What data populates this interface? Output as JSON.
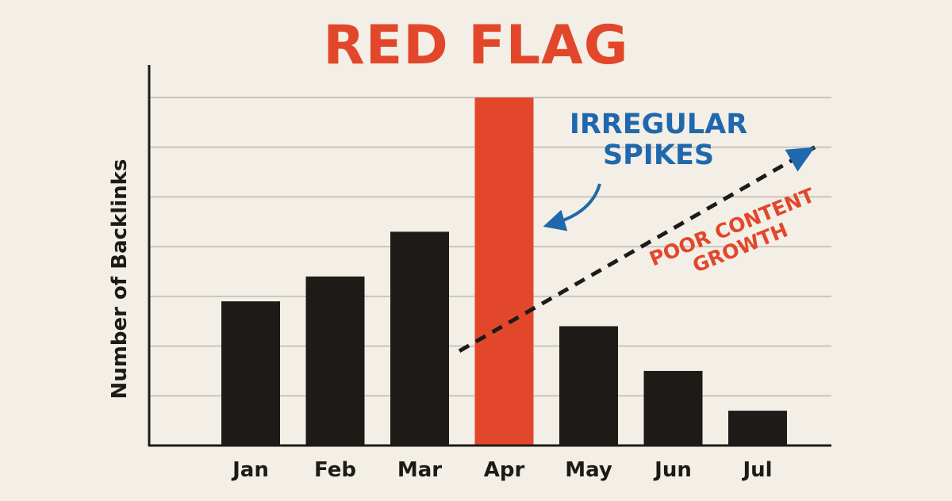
{
  "chart_data": {
    "type": "bar",
    "title": "RED FLAG",
    "ylabel": "Number of Backlinks",
    "xlabel": "",
    "categories": [
      "Jan",
      "Feb",
      "Mar",
      "Apr",
      "May",
      "Jun",
      "Jul"
    ],
    "values": [
      2.9,
      3.4,
      4.3,
      7.0,
      2.4,
      1.5,
      0.7
    ],
    "highlight_index": 3,
    "ylim": [
      0,
      7
    ],
    "grid": true,
    "colors": {
      "bar": "#1d1b18",
      "highlight": "#e2472b",
      "title": "#e2472b",
      "callout_blue": "#1f68ad",
      "callout_red": "#e2472b",
      "grid": "#c9c6bf",
      "axis": "#1d1b18",
      "background": "#f3efe6"
    },
    "annotations": {
      "spikes_line1": "IRREGULAR",
      "spikes_line2": "SPIKES",
      "growth_line1": "POOR CONTENT",
      "growth_line2": "GROWTH"
    },
    "trend_arrow": {
      "from": {
        "x": "Mar",
        "y": 1.9
      },
      "to": {
        "x": "Jul",
        "y": 6.0
      },
      "style": "dashed"
    }
  }
}
